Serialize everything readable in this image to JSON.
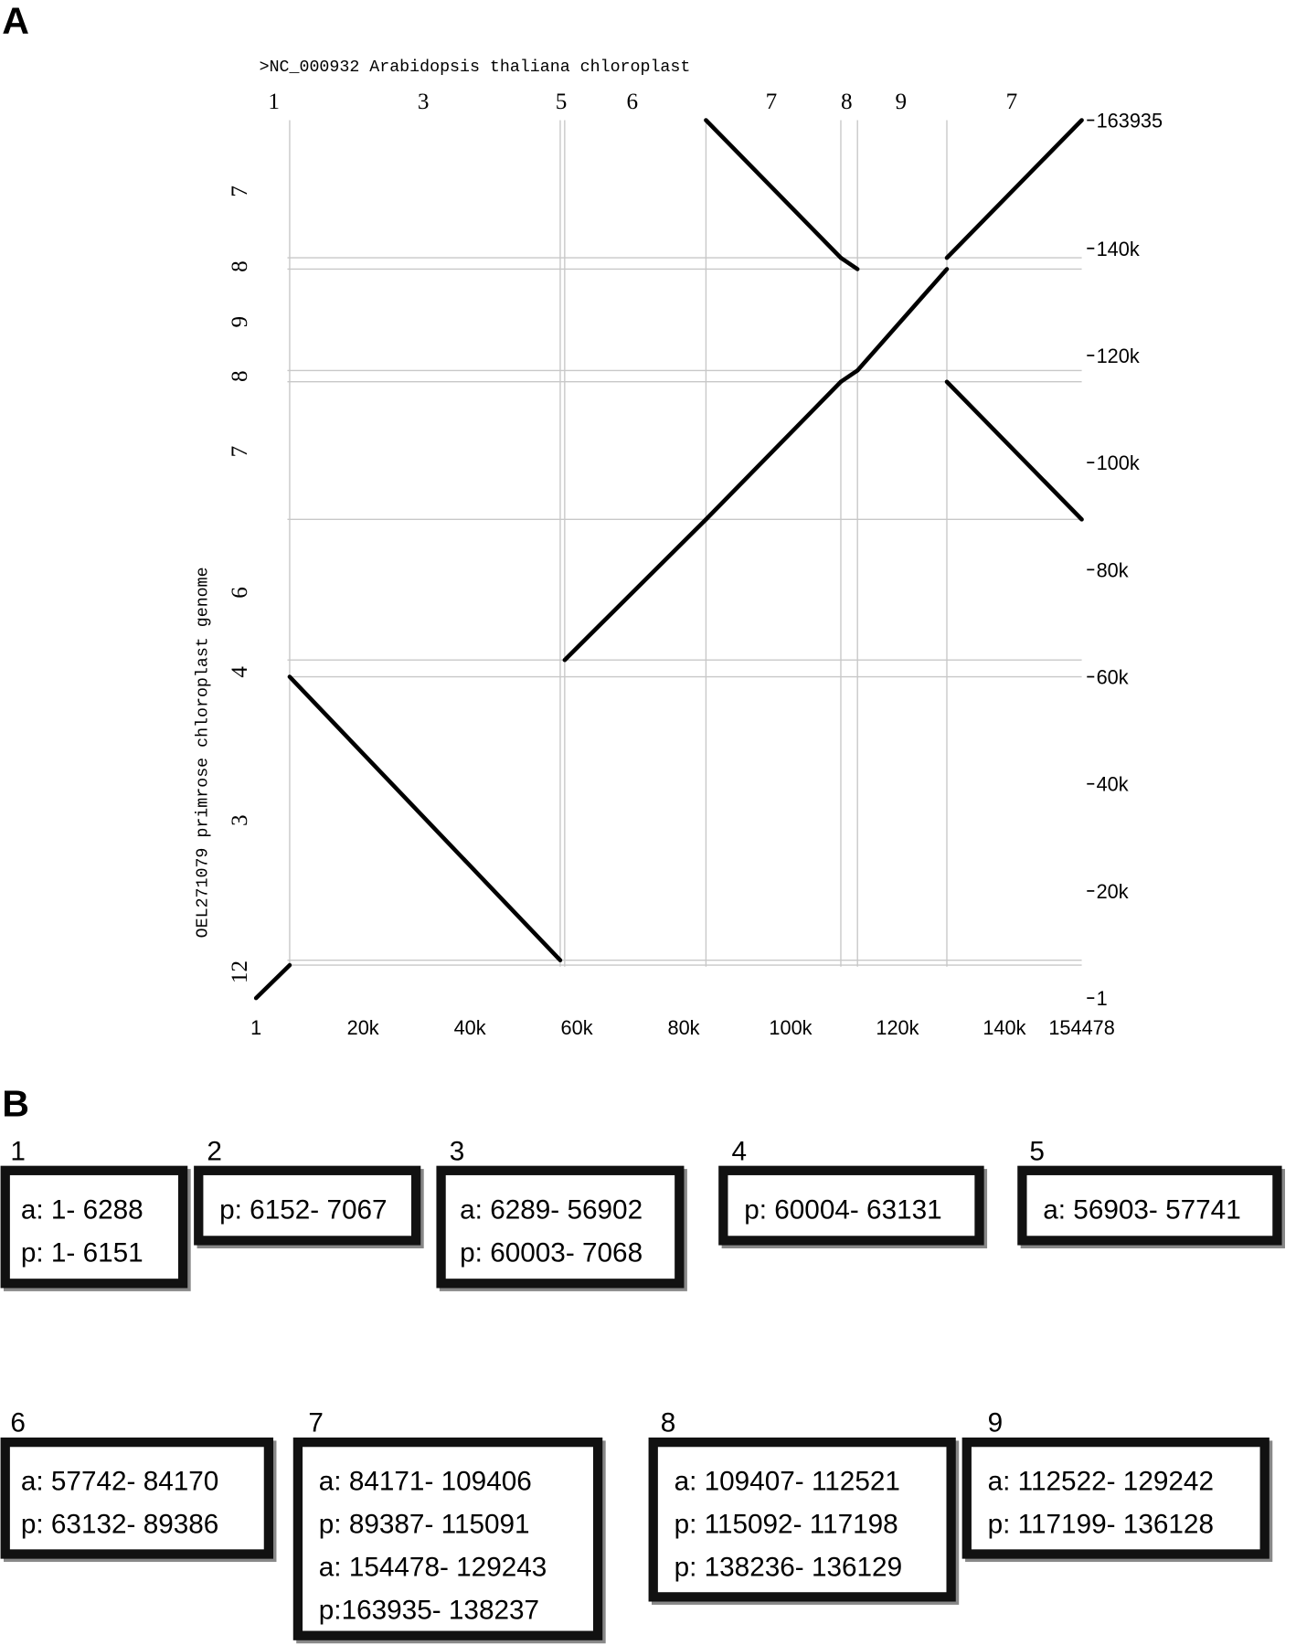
{
  "panel_a": "A",
  "panel_b": "B",
  "chart_data": {
    "type": "dotplot",
    "title": ">NC_000932 Arabidopsis thaliana chloroplast",
    "y_label": "OEL271079 primrose chloroplast genome",
    "xlim": [
      1,
      154478
    ],
    "ylim": [
      1,
      163935
    ],
    "xticks": [
      1,
      {
        "value": 20000,
        "label": "20k"
      },
      {
        "value": 40000,
        "label": "40k"
      },
      {
        "value": 60000,
        "label": "60k"
      },
      {
        "value": 80000,
        "label": "80k"
      },
      {
        "value": 100000,
        "label": "100k"
      },
      {
        "value": 120000,
        "label": "120k"
      },
      {
        "value": 140000,
        "label": "140k"
      },
      154478
    ],
    "yticks": [
      1,
      {
        "value": 20000,
        "label": "20k"
      },
      {
        "value": 40000,
        "label": "40k"
      },
      {
        "value": 60000,
        "label": "60k"
      },
      {
        "value": 80000,
        "label": "80k"
      },
      {
        "value": 100000,
        "label": "100k"
      },
      {
        "value": 120000,
        "label": "120k"
      },
      {
        "value": 140000,
        "label": "140k"
      },
      163935
    ],
    "top_labels": [
      {
        "value": 3325,
        "label": "1"
      },
      {
        "value": 31287,
        "label": "3"
      },
      {
        "value": 57100,
        "label": "5"
      },
      {
        "value": 70394,
        "label": "6"
      },
      {
        "value": 96400,
        "label": "7"
      },
      {
        "value": 110480,
        "label": "8"
      },
      {
        "value": 120650,
        "label": "9"
      },
      {
        "value": 141380,
        "label": "7"
      }
    ],
    "side_labels": [
      {
        "value": 150665,
        "label": "7"
      },
      {
        "value": 136614,
        "label": "8"
      },
      {
        "value": 126270,
        "label": "9"
      },
      {
        "value": 116120,
        "label": "8"
      },
      {
        "value": 102070,
        "label": "7"
      },
      {
        "value": 75720,
        "label": "6"
      },
      {
        "value": 60890,
        "label": "4"
      },
      {
        "value": 33180,
        "label": "3"
      },
      {
        "value": 4880,
        "label": "12"
      }
    ],
    "vlines": [
      6289,
      56903,
      57742,
      84171,
      109407,
      112522,
      129243
    ],
    "hlines": [
      138237,
      136129,
      117199,
      115092,
      89387,
      63132,
      60004,
      7068,
      6152
    ],
    "color": "#000000",
    "segments": [
      {
        "x": [
          1,
          6288
        ],
        "y": [
          1,
          6151
        ]
      },
      {
        "x": [
          6289,
          56902
        ],
        "y": [
          60003,
          7068
        ]
      },
      {
        "x": [
          57742,
          84170
        ],
        "y": [
          63132,
          89386
        ]
      },
      {
        "x": [
          84171,
          109406
        ],
        "y": [
          89387,
          115091
        ]
      },
      {
        "x": [
          109407,
          112521
        ],
        "y": [
          115092,
          117198
        ]
      },
      {
        "x": [
          112522,
          129242
        ],
        "y": [
          117199,
          136128
        ]
      },
      {
        "x": [
          154478,
          129243
        ],
        "y": [
          163935,
          138237
        ]
      },
      {
        "x": [
          84171,
          109406
        ],
        "y": [
          163935,
          138237
        ]
      },
      {
        "x": [
          109407,
          112521
        ],
        "y": [
          138236,
          136129
        ]
      },
      {
        "x": [
          129243,
          154478
        ],
        "y": [
          115091,
          89387
        ]
      }
    ]
  },
  "boxes": [
    {
      "number": "1",
      "lines": [
        "a: 1- 6288",
        "p: 1- 6151"
      ]
    },
    {
      "number": "2",
      "lines": [
        "p: 6152- 7067"
      ]
    },
    {
      "number": "3",
      "lines": [
        "a: 6289- 56902",
        "p: 60003- 7068"
      ]
    },
    {
      "number": "4",
      "lines": [
        "p: 60004- 63131"
      ]
    },
    {
      "number": "5",
      "lines": [
        "a: 56903- 57741"
      ]
    },
    {
      "number": "6",
      "lines": [
        "a: 57742- 84170",
        "p: 63132- 89386"
      ]
    },
    {
      "number": "7",
      "lines": [
        "a: 84171- 109406",
        "p: 89387- 115091",
        "a: 154478- 129243",
        "p:163935- 138237"
      ]
    },
    {
      "number": "8",
      "lines": [
        "a: 109407- 112521",
        "p: 115092- 117198",
        "p: 138236- 136129"
      ]
    },
    {
      "number": "9",
      "lines": [
        "a: 112522- 129242",
        "p: 117199- 136128"
      ]
    }
  ]
}
